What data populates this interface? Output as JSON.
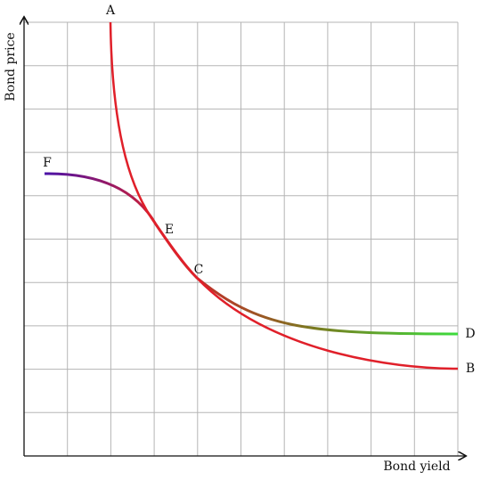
{
  "axes": {
    "y_label": "Bond price",
    "x_label": "Bond yield"
  },
  "points": {
    "A": "A",
    "B": "B",
    "C": "C",
    "D": "D",
    "E": "E",
    "F": "F"
  }
}
